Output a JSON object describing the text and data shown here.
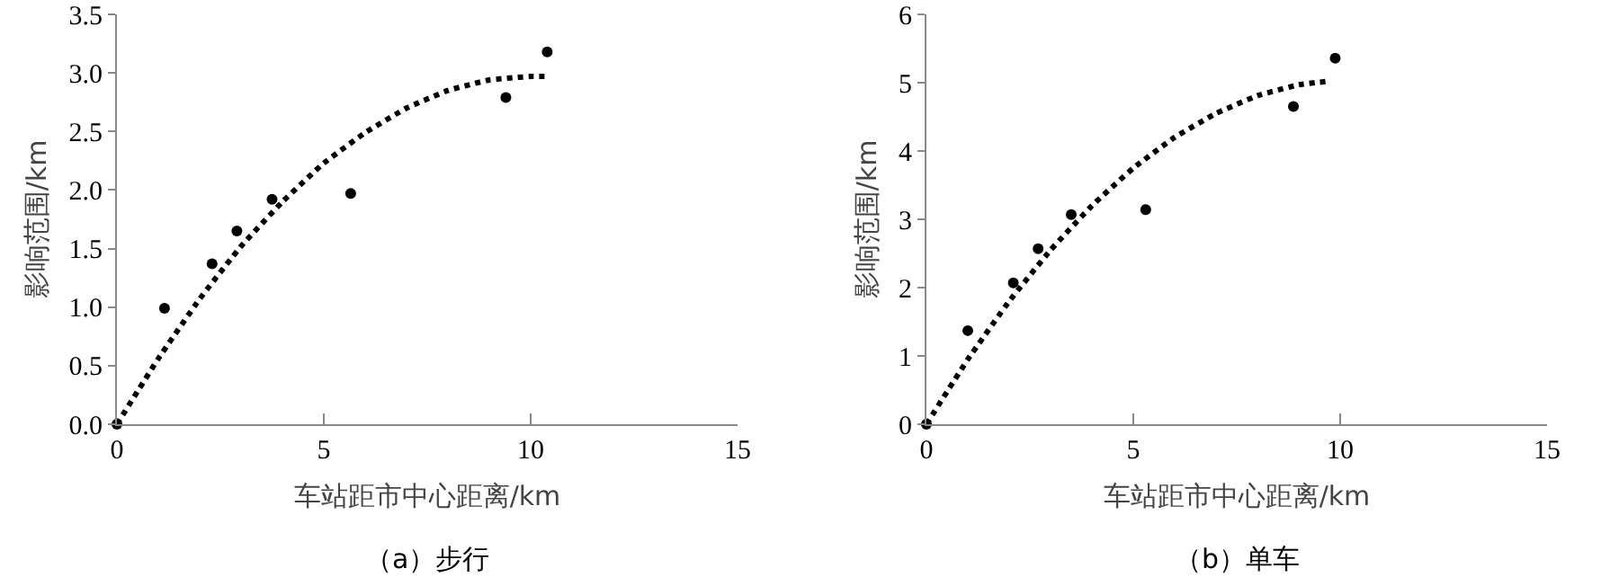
{
  "chart_data": [
    {
      "type": "scatter",
      "xlabel": "车站距市中心距离/km",
      "ylabel": "影响范围/km",
      "annotations": [
        "（a）步行"
      ],
      "xlim": [
        0,
        15
      ],
      "xticks": [
        0,
        5,
        10,
        15
      ],
      "ylim": [
        0,
        3.5
      ],
      "yticks": [
        {
          "value": 0,
          "label": "0.0"
        },
        {
          "value": 0.5,
          "label": "0.5"
        },
        {
          "value": 1,
          "label": "1.0"
        },
        {
          "value": 1.5,
          "label": "1.5"
        },
        {
          "value": 2,
          "label": "2.0"
        },
        {
          "value": 2.5,
          "label": "2.5"
        },
        {
          "value": 3,
          "label": "3.0"
        },
        {
          "value": 3.5,
          "label": "3.5"
        }
      ],
      "grid": false,
      "series": [
        {
          "type": "scatter",
          "marker": "circle",
          "color": "#000000",
          "x": [
            0,
            1.15,
            2.3,
            2.9,
            3.75,
            5.65,
            9.4,
            10.4
          ],
          "values": [
            0,
            0.99,
            1.37,
            1.65,
            1.92,
            1.97,
            2.79,
            3.18
          ]
        },
        {
          "type": "line",
          "marker": "none",
          "line_style": "dotted",
          "color": "#000000",
          "x": [
            0,
            1,
            2,
            3,
            4,
            5,
            6,
            7,
            8,
            9,
            10,
            10.4
          ],
          "values": [
            0,
            0.56,
            1.07,
            1.52,
            1.9,
            2.23,
            2.49,
            2.7,
            2.85,
            2.94,
            2.97,
            2.97
          ]
        }
      ]
    },
    {
      "type": "scatter",
      "xlabel": "车站距市中心距离/km",
      "ylabel": "影响范围/km",
      "annotations": [
        "（b）单车"
      ],
      "xlim": [
        0,
        15
      ],
      "xticks": [
        0,
        5,
        10,
        15
      ],
      "ylim": [
        0,
        6
      ],
      "yticks": [
        0,
        1,
        2,
        3,
        4,
        5,
        6
      ],
      "grid": false,
      "series": [
        {
          "type": "scatter",
          "marker": "circle",
          "color": "#000000",
          "x": [
            0,
            1.0,
            2.1,
            2.7,
            3.5,
            5.3,
            8.87,
            9.88
          ],
          "values": [
            0,
            1.37,
            2.07,
            2.57,
            3.07,
            3.14,
            4.65,
            5.36
          ]
        },
        {
          "type": "line",
          "marker": "none",
          "line_style": "dotted",
          "color": "#000000",
          "x": [
            0,
            1,
            2,
            3,
            4,
            5,
            6,
            7,
            8,
            9,
            9.7
          ],
          "values": [
            0,
            0.95,
            1.8,
            2.55,
            3.2,
            3.75,
            4.2,
            4.55,
            4.81,
            4.97,
            5.02
          ]
        }
      ]
    }
  ]
}
